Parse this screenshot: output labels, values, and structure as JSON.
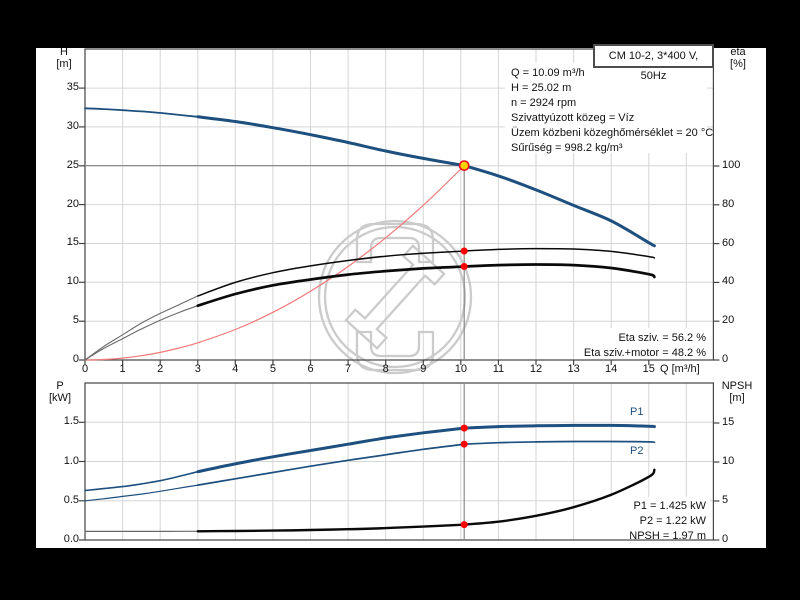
{
  "title_box": "CM 10-2, 3*400 V, 50Hz",
  "info_block": {
    "lines": [
      "Q = 10.09 m³/h",
      "H = 25.02 m",
      "n = 2924 rpm",
      "Szivattyúzott közeg = Víz",
      "Üzem közbeni közeghőmérséklet = 20 °C",
      "Sűrűség = 998.2 kg/m³"
    ]
  },
  "top_chart_labels": {
    "y_left_title": "H",
    "y_left_unit": "[m]",
    "y_right_title": "eta",
    "y_right_unit": "[%]",
    "x_unit": "Q [m³/h]",
    "eta_annotation_1": "Eta sziv. = 56.2 %",
    "eta_annotation_2": "Eta sziv.+motor = 48.2 %"
  },
  "bottom_chart_labels": {
    "y_left_title": "P",
    "y_left_unit": "[kW]",
    "y_right_title": "NPSH",
    "y_right_unit": "[m]",
    "p1_curve_label": "P1",
    "p2_curve_label": "P2",
    "annotation_p1": "P1 = 1.425 kW",
    "annotation_p2": "P2 = 1.22 kW",
    "annotation_npsh": "NPSH = 1.97 m"
  },
  "colors": {
    "curve_blue": "#1d4f7f",
    "curve_black": "#0a0a0a",
    "lead_gray": "#6a6a6a",
    "curve_red": "#f07878",
    "dot_red": "#ff0000",
    "op_fill": "#ffd400",
    "op_stroke": "#e81123",
    "grid": "#d6d6d6",
    "axis": "#444444",
    "crosshair": "#8a8a8a",
    "watermark": "#cbcbcb",
    "panel": "#ffffff",
    "background": "#000000"
  },
  "chart_data": [
    {
      "type": "line",
      "title": "CM 10-2, 3*400 V, 50Hz",
      "xlabel": "Q [m³/h]",
      "ylabel_left": "H [m]",
      "ylabel_right": "eta [%]",
      "xlim": [
        0,
        16.72
      ],
      "ylim_left": [
        0,
        40.03
      ],
      "ylim_right": [
        0,
        160.3
      ],
      "x_ticks": [
        0,
        1,
        2,
        3,
        4,
        5,
        6,
        7,
        8,
        9,
        10,
        11,
        12,
        13,
        14,
        15
      ],
      "y_ticks_left": [
        0,
        5,
        10,
        15,
        20,
        25,
        30,
        35
      ],
      "y_ticks_right": [
        0,
        20,
        40,
        60,
        80,
        100
      ],
      "grid": true,
      "x": [
        0,
        0.5,
        1,
        1.5,
        2,
        2.5,
        3,
        4,
        5,
        6,
        7,
        8,
        9,
        10,
        10.09,
        11,
        12,
        13,
        14,
        15,
        15.15
      ],
      "series": [
        {
          "name": "H",
          "axis": "left",
          "values": [
            32.4,
            32.3,
            32.15,
            32.0,
            31.8,
            31.55,
            31.3,
            30.7,
            29.9,
            29.0,
            28.0,
            26.9,
            25.95,
            25.1,
            25.02,
            23.7,
            21.9,
            19.9,
            17.9,
            15.1,
            14.7
          ]
        },
        {
          "name": "Eta sziv.",
          "axis": "right",
          "values": [
            0,
            7,
            13,
            19,
            24,
            28.5,
            33,
            40,
            45,
            48.5,
            51.3,
            53.5,
            55.0,
            56.1,
            56.2,
            57.0,
            57.4,
            57.2,
            56.0,
            53.3,
            52.6
          ]
        },
        {
          "name": "Eta sziv.+motor",
          "axis": "right",
          "values": [
            0,
            6,
            11,
            16,
            20.5,
            24.5,
            28,
            34,
            38.5,
            41.5,
            44,
            45.8,
            47.2,
            48.1,
            48.2,
            48.9,
            49.2,
            48.9,
            47.4,
            44.2,
            42.8
          ]
        },
        {
          "name": "system curve",
          "axis": "left",
          "x": [
            0,
            0.5,
            1,
            1.5,
            2,
            2.5,
            3,
            4,
            5,
            6,
            7,
            8,
            9,
            10,
            10.09
          ],
          "values": [
            0,
            0.06,
            0.25,
            0.55,
            0.98,
            1.54,
            2.21,
            3.93,
            6.14,
            8.85,
            12.04,
            15.73,
            19.91,
            24.58,
            25.02
          ]
        }
      ],
      "operating_point": {
        "q": 10.09,
        "h": 25.02,
        "eta_pump": 56.2,
        "eta_total": 48.2
      }
    },
    {
      "type": "line",
      "xlabel": "Q [m³/h]",
      "ylabel_left": "P [kW]",
      "ylabel_right": "NPSH [m]",
      "xlim": [
        0,
        16.72
      ],
      "ylim_left": [
        0,
        2.0
      ],
      "ylim_right": [
        0,
        20.13
      ],
      "y_ticks_left": [
        "0.0",
        "0.5",
        "1.0",
        "1.5"
      ],
      "y_ticks_right": [
        0,
        5,
        10,
        15
      ],
      "grid": true,
      "x": [
        0,
        0.5,
        1,
        1.5,
        2,
        2.5,
        3,
        4,
        5,
        6,
        7,
        8,
        9,
        10,
        10.09,
        11,
        12,
        13,
        14,
        15,
        15.15
      ],
      "series": [
        {
          "name": "P1",
          "axis": "left",
          "values": [
            0.63,
            0.655,
            0.68,
            0.715,
            0.755,
            0.81,
            0.87,
            0.97,
            1.06,
            1.14,
            1.22,
            1.3,
            1.365,
            1.42,
            1.425,
            1.445,
            1.455,
            1.46,
            1.46,
            1.45,
            1.445
          ]
        },
        {
          "name": "P2",
          "axis": "left",
          "values": [
            0.5,
            0.525,
            0.555,
            0.585,
            0.62,
            0.66,
            0.7,
            0.78,
            0.86,
            0.94,
            1.015,
            1.085,
            1.155,
            1.215,
            1.22,
            1.24,
            1.25,
            1.255,
            1.255,
            1.25,
            1.245
          ]
        },
        {
          "name": "NPSH",
          "axis": "right",
          "values": [
            1.1,
            1.1,
            1.1,
            1.1,
            1.1,
            1.11,
            1.12,
            1.15,
            1.2,
            1.28,
            1.38,
            1.52,
            1.72,
            1.95,
            1.97,
            2.35,
            3.1,
            4.2,
            5.8,
            8.1,
            9.0
          ]
        }
      ],
      "operating_point": {
        "q": 10.09,
        "p1": 1.425,
        "p2": 1.22,
        "npsh": 1.97
      }
    }
  ]
}
